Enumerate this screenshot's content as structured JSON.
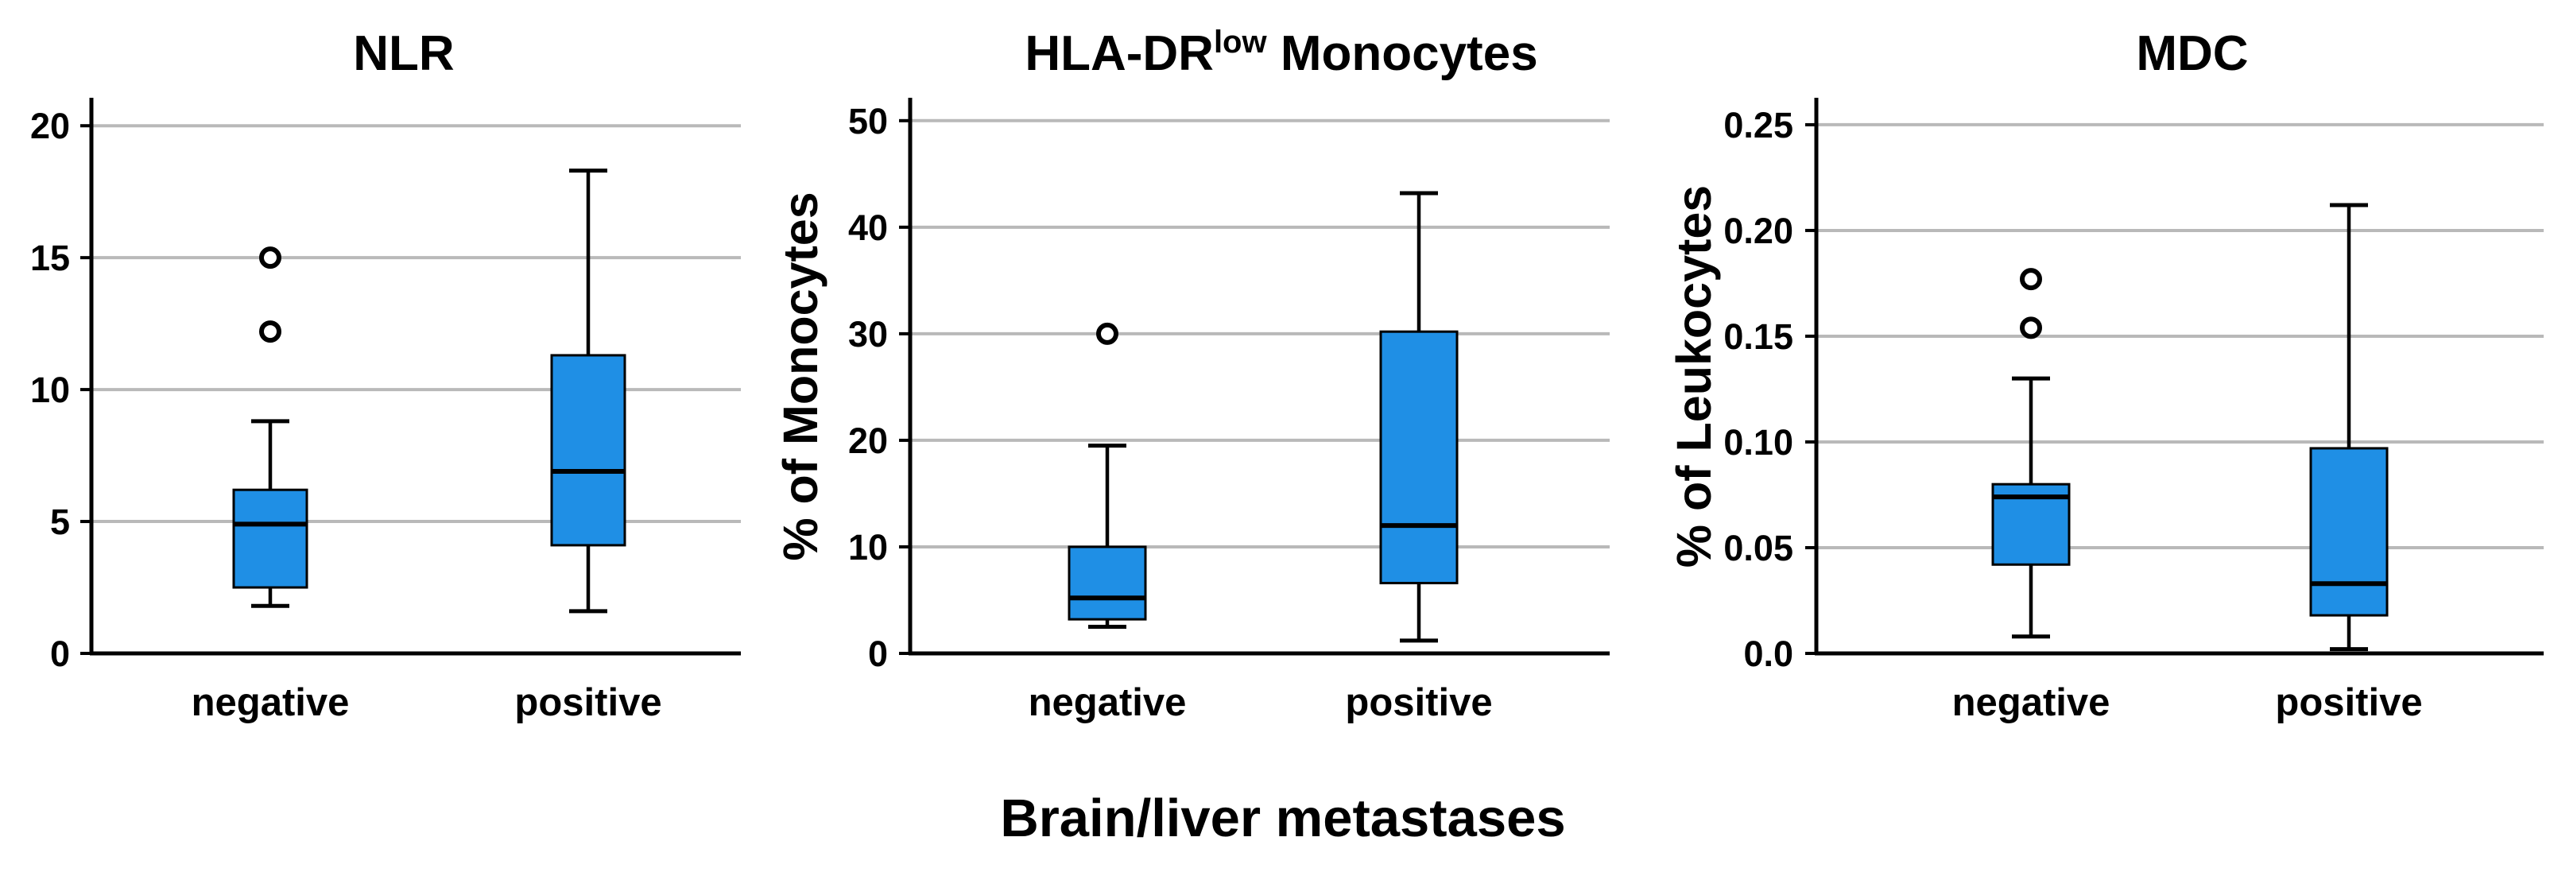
{
  "chart_data": [
    {
      "type": "box",
      "title": "NLR",
      "title_superscript": "",
      "title_suffix": "",
      "ylabel": "",
      "ylim": [
        0,
        21
      ],
      "yticks": [
        0,
        5,
        10,
        15,
        20
      ],
      "ytick_labels": [
        "0",
        "5",
        "10",
        "15",
        "20"
      ],
      "grid": true,
      "categories": [
        "negative",
        "positive"
      ],
      "boxes": [
        {
          "category": "negative",
          "whisker_low": 1.8,
          "q1": 2.5,
          "median": 4.9,
          "q3": 6.2,
          "whisker_high": 8.8,
          "outliers": [
            12.2,
            15.0
          ]
        },
        {
          "category": "positive",
          "whisker_low": 1.6,
          "q1": 4.1,
          "median": 6.9,
          "q3": 11.3,
          "whisker_high": 18.3,
          "outliers": []
        }
      ]
    },
    {
      "type": "box",
      "title": "HLA-DR",
      "title_superscript": "low",
      "title_suffix": " Monocytes",
      "ylabel": "% of Monocytes",
      "ylim": [
        0,
        52
      ],
      "yticks": [
        0,
        10,
        20,
        30,
        40,
        50
      ],
      "ytick_labels": [
        "0",
        "10",
        "20",
        "30",
        "40",
        "50"
      ],
      "grid": true,
      "categories": [
        "negative",
        "positive"
      ],
      "boxes": [
        {
          "category": "negative",
          "whisker_low": 2.5,
          "q1": 3.2,
          "median": 5.2,
          "q3": 10.0,
          "whisker_high": 19.5,
          "outliers": [
            30.0
          ]
        },
        {
          "category": "positive",
          "whisker_low": 1.2,
          "q1": 6.6,
          "median": 12.0,
          "q3": 30.2,
          "whisker_high": 43.2,
          "outliers": []
        }
      ]
    },
    {
      "type": "box",
      "title": "MDC",
      "title_superscript": "",
      "title_suffix": "",
      "ylabel": "% of Leukocytes",
      "ylim": [
        0,
        0.262
      ],
      "yticks": [
        0,
        0.05,
        0.1,
        0.15,
        0.2,
        0.25
      ],
      "ytick_labels": [
        "0.0",
        "0.05",
        "0.10",
        "0.15",
        "0.20",
        "0.25"
      ],
      "grid": true,
      "categories": [
        "negative",
        "positive"
      ],
      "boxes": [
        {
          "category": "negative",
          "whisker_low": 0.008,
          "q1": 0.042,
          "median": 0.074,
          "q3": 0.08,
          "whisker_high": 0.13,
          "outliers": [
            0.154,
            0.177
          ]
        },
        {
          "category": "positive",
          "whisker_low": 0.002,
          "q1": 0.018,
          "median": 0.033,
          "q3": 0.097,
          "whisker_high": 0.212,
          "outliers": []
        }
      ]
    }
  ],
  "shared_xlabel": "Brain/liver metastases",
  "colors": {
    "box_fill": "#1f8fe5",
    "gridline": "#b9b9b9",
    "axis": "#000000"
  }
}
